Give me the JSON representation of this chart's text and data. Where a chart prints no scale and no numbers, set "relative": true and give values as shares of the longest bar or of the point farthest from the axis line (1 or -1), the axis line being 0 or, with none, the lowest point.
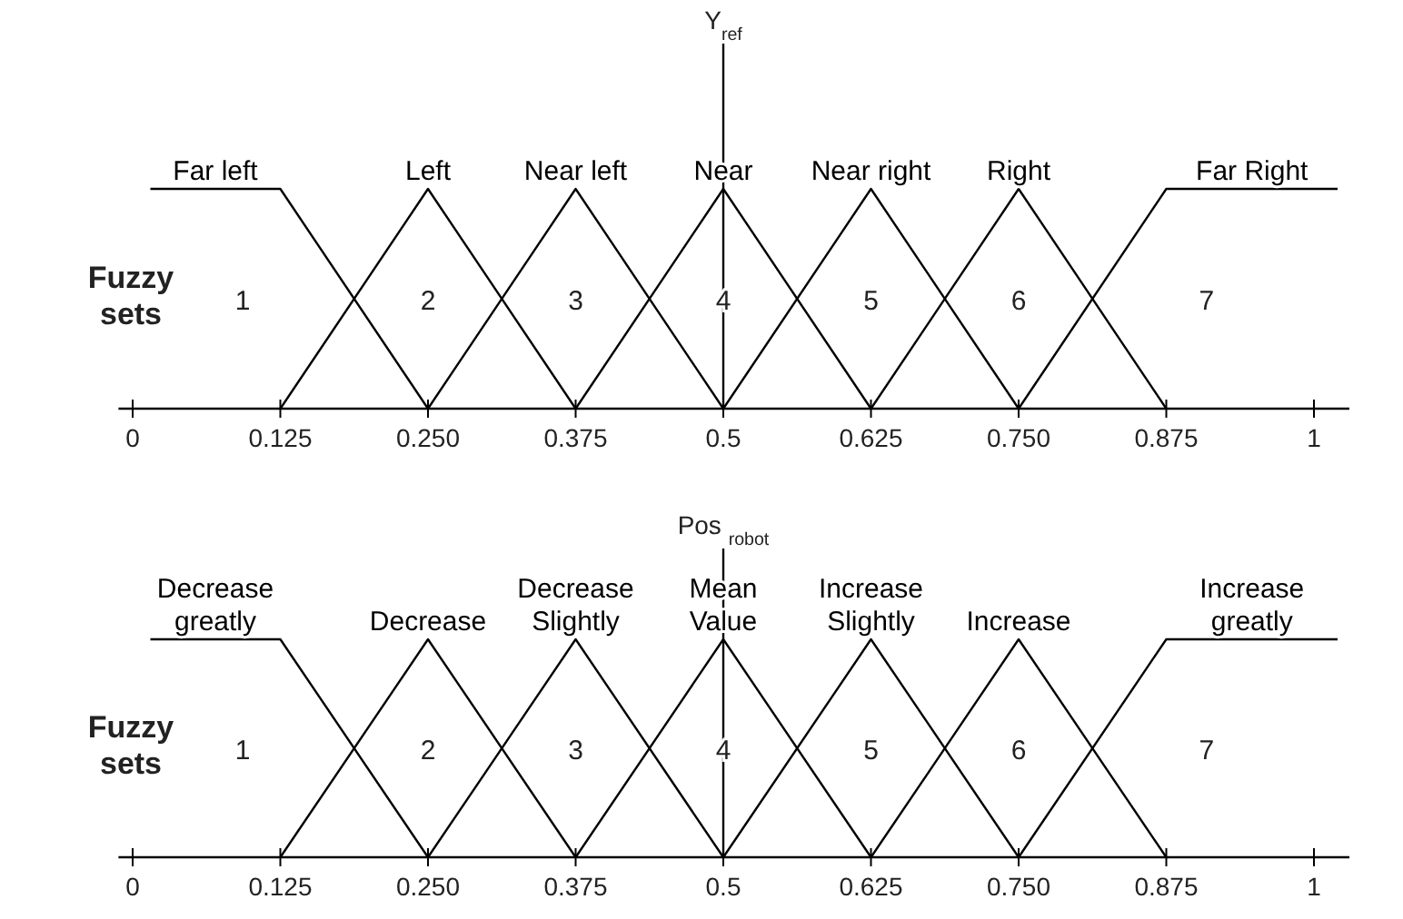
{
  "chart_data": [
    {
      "type": "line",
      "relative": true,
      "xlim": [
        -0.012,
        1.03
      ],
      "xticks": [
        0,
        {
          "value": 0.125,
          "label": "0.125"
        },
        {
          "value": 0.25,
          "label": "0.250"
        },
        {
          "value": 0.375,
          "label": "0.375"
        },
        0.5,
        {
          "value": 0.625,
          "label": "0.625"
        },
        {
          "value": 0.75,
          "label": "0.750"
        },
        {
          "value": 0.875,
          "label": "0.875"
        },
        1
      ],
      "series": [
        {
          "name": "Far left",
          "color": "#000000",
          "x": [
            0.015,
            0.125,
            0.25
          ],
          "values": [
            1,
            1,
            0
          ]
        },
        {
          "name": "Left",
          "color": "#000000",
          "x": [
            0.125,
            0.25,
            0.375
          ],
          "values": [
            0,
            1,
            0
          ]
        },
        {
          "name": "Near left",
          "color": "#000000",
          "x": [
            0.25,
            0.375,
            0.5
          ],
          "values": [
            0,
            1,
            0
          ]
        },
        {
          "name": "Near",
          "color": "#000000",
          "x": [
            0.375,
            0.5,
            0.625
          ],
          "values": [
            0,
            1,
            0
          ]
        },
        {
          "name": "Near right",
          "color": "#000000",
          "x": [
            0.5,
            0.625,
            0.75
          ],
          "values": [
            0,
            1,
            0
          ]
        },
        {
          "name": "Right",
          "color": "#000000",
          "x": [
            0.625,
            0.75,
            0.875
          ],
          "values": [
            0,
            1,
            0
          ]
        },
        {
          "name": "Far Right",
          "color": "#000000",
          "x": [
            0.75,
            0.875,
            1.02
          ],
          "values": [
            0,
            1,
            1
          ]
        }
      ],
      "ref_lines": [
        {
          "axis": "x",
          "value": 0.5,
          "label": "Y$_{ref}$"
        }
      ],
      "annotations": [
        "Fuzzy sets",
        "1",
        "2",
        "3",
        "4",
        "5",
        "6",
        "7"
      ]
    },
    {
      "type": "line",
      "relative": true,
      "xlim": [
        -0.012,
        1.03
      ],
      "xticks": [
        0,
        {
          "value": 0.125,
          "label": "0.125"
        },
        {
          "value": 0.25,
          "label": "0.250"
        },
        {
          "value": 0.375,
          "label": "0.375"
        },
        0.5,
        {
          "value": 0.625,
          "label": "0.625"
        },
        {
          "value": 0.75,
          "label": "0.750"
        },
        {
          "value": 0.875,
          "label": "0.875"
        },
        1
      ],
      "series": [
        {
          "name": "Decrease\ngreatly",
          "color": "#000000",
          "x": [
            0.015,
            0.125,
            0.25
          ],
          "values": [
            1,
            1,
            0
          ]
        },
        {
          "name": "Decrease",
          "color": "#000000",
          "x": [
            0.125,
            0.25,
            0.375
          ],
          "values": [
            0,
            1,
            0
          ]
        },
        {
          "name": "Decrease\nSlightly",
          "color": "#000000",
          "x": [
            0.25,
            0.375,
            0.5
          ],
          "values": [
            0,
            1,
            0
          ]
        },
        {
          "name": "Mean\nValue",
          "color": "#000000",
          "x": [
            0.375,
            0.5,
            0.625
          ],
          "values": [
            0,
            1,
            0
          ]
        },
        {
          "name": "Increase\nSlightly",
          "color": "#000000",
          "x": [
            0.5,
            0.625,
            0.75
          ],
          "values": [
            0,
            1,
            0
          ]
        },
        {
          "name": "Increase",
          "color": "#000000",
          "x": [
            0.625,
            0.75,
            0.875
          ],
          "values": [
            0,
            1,
            0
          ]
        },
        {
          "name": "Increase\ngreatly",
          "color": "#000000",
          "x": [
            0.75,
            0.875,
            1.02
          ],
          "values": [
            0,
            1,
            1
          ]
        }
      ],
      "ref_lines": [
        {
          "axis": "x",
          "value": 0.5,
          "label": "Pos $_{robot}$"
        }
      ],
      "annotations": [
        "Fuzzy sets",
        "1",
        "2",
        "3",
        "4",
        "5",
        "6",
        "7"
      ]
    }
  ]
}
